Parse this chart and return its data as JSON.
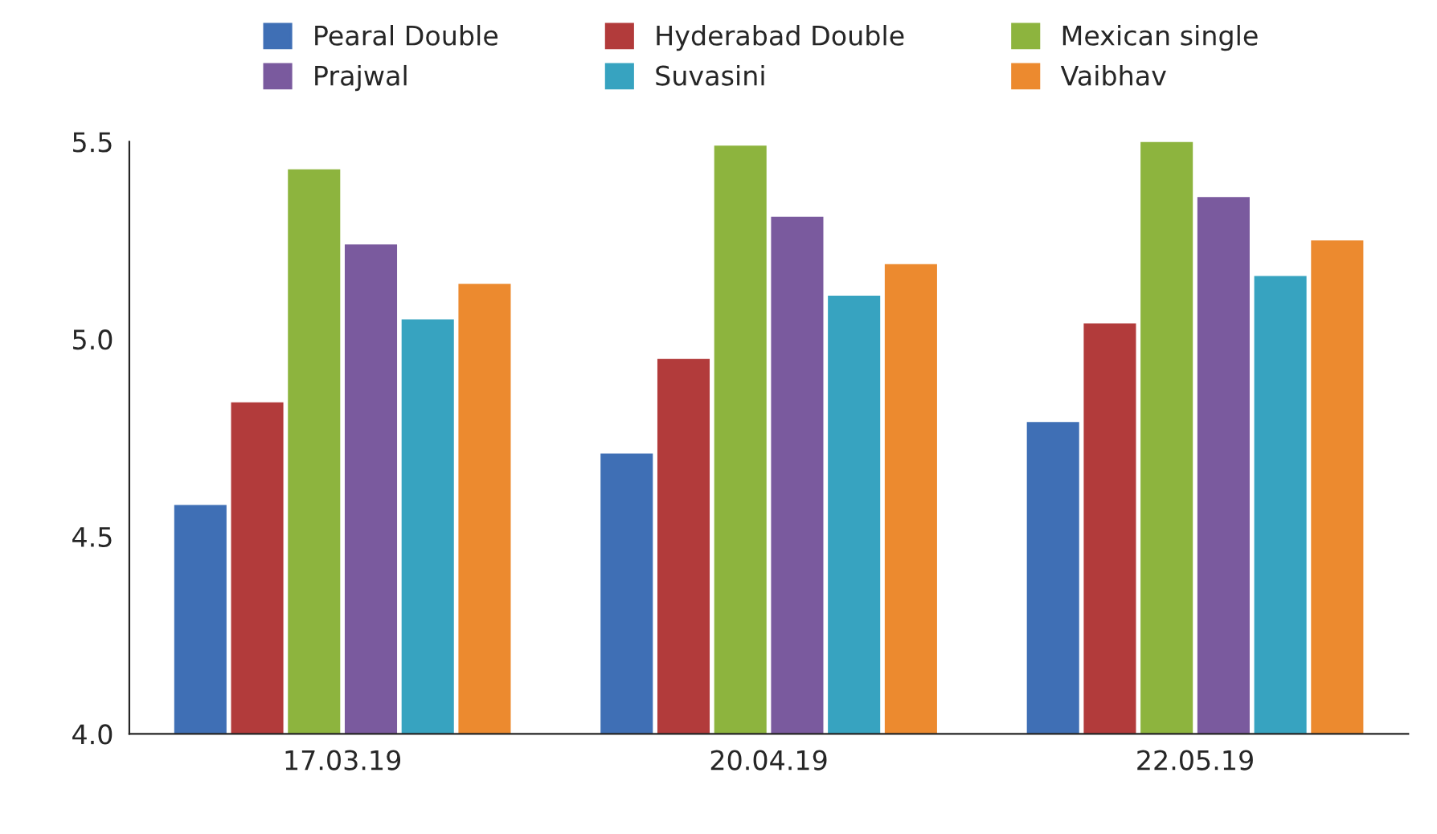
{
  "chart_data": {
    "type": "bar",
    "categories": [
      "17.03.19",
      "20.04.19",
      "22.05.19"
    ],
    "series": [
      {
        "name": "Pearal Double",
        "color": "#3f6fb5",
        "values": [
          4.58,
          4.71,
          4.79
        ]
      },
      {
        "name": "Hyderabad Double",
        "color": "#b23b3b",
        "values": [
          4.84,
          4.95,
          5.04
        ]
      },
      {
        "name": "Mexican single",
        "color": "#8db43e",
        "values": [
          5.43,
          5.49,
          5.5
        ]
      },
      {
        "name": "Prajwal",
        "color": "#7a5a9e",
        "values": [
          5.24,
          5.31,
          5.36
        ]
      },
      {
        "name": "Suvasini",
        "color": "#37a3c0",
        "values": [
          5.05,
          5.11,
          5.16
        ]
      },
      {
        "name": "Vaibhav",
        "color": "#ec8a2f",
        "values": [
          5.14,
          5.19,
          5.25
        ]
      }
    ],
    "ylim": [
      4.0,
      5.5
    ],
    "yticks": [
      {
        "value": 4.0,
        "label": "4.0"
      },
      {
        "value": 4.5,
        "label": "4.5"
      },
      {
        "value": 5.0,
        "label": "5.0"
      },
      {
        "value": 5.5,
        "label": "5.5"
      }
    ],
    "grid": false,
    "legend": "top"
  }
}
